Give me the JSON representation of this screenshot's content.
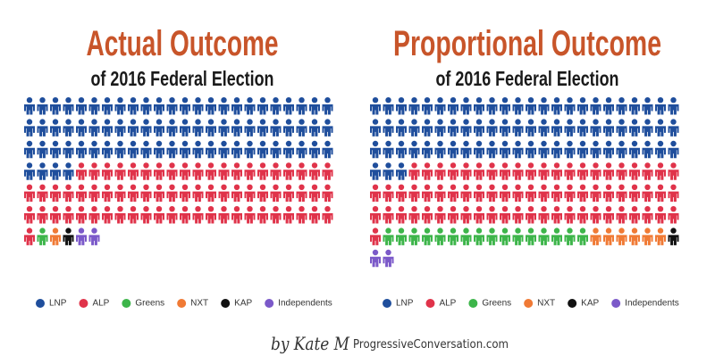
{
  "chart_data": [
    {
      "type": "pictogram",
      "title": "Actual Outcome",
      "subtitle": "of 2016 Federal Election",
      "series": [
        {
          "name": "LNP",
          "color": "#1f4e9c",
          "values": [
            76
          ]
        },
        {
          "name": "ALP",
          "color": "#e0334a",
          "values": [
            69
          ]
        },
        {
          "name": "Greens",
          "color": "#3db54a",
          "values": [
            1
          ]
        },
        {
          "name": "NXT",
          "color": "#f07a35",
          "values": [
            1
          ]
        },
        {
          "name": "KAP",
          "color": "#111111",
          "values": [
            1
          ]
        },
        {
          "name": "Independents",
          "color": "#7b59c9",
          "values": [
            2
          ]
        }
      ]
    },
    {
      "type": "pictogram",
      "title": "Proportional Outcome",
      "subtitle": "of 2016 Federal Election",
      "series": [
        {
          "name": "LNP",
          "color": "#1f4e9c",
          "values": [
            75
          ]
        },
        {
          "name": "ALP",
          "color": "#e0334a",
          "values": [
            70
          ]
        },
        {
          "name": "Greens",
          "color": "#3db54a",
          "values": [
            16
          ]
        },
        {
          "name": "NXT",
          "color": "#f07a35",
          "values": [
            6
          ]
        },
        {
          "name": "KAP",
          "color": "#111111",
          "values": [
            1
          ]
        },
        {
          "name": "Independents",
          "color": "#7b59c9",
          "values": [
            2
          ]
        }
      ]
    }
  ],
  "footer": {
    "signature": "by Kate M",
    "site": "ProgressiveConversation.com"
  }
}
